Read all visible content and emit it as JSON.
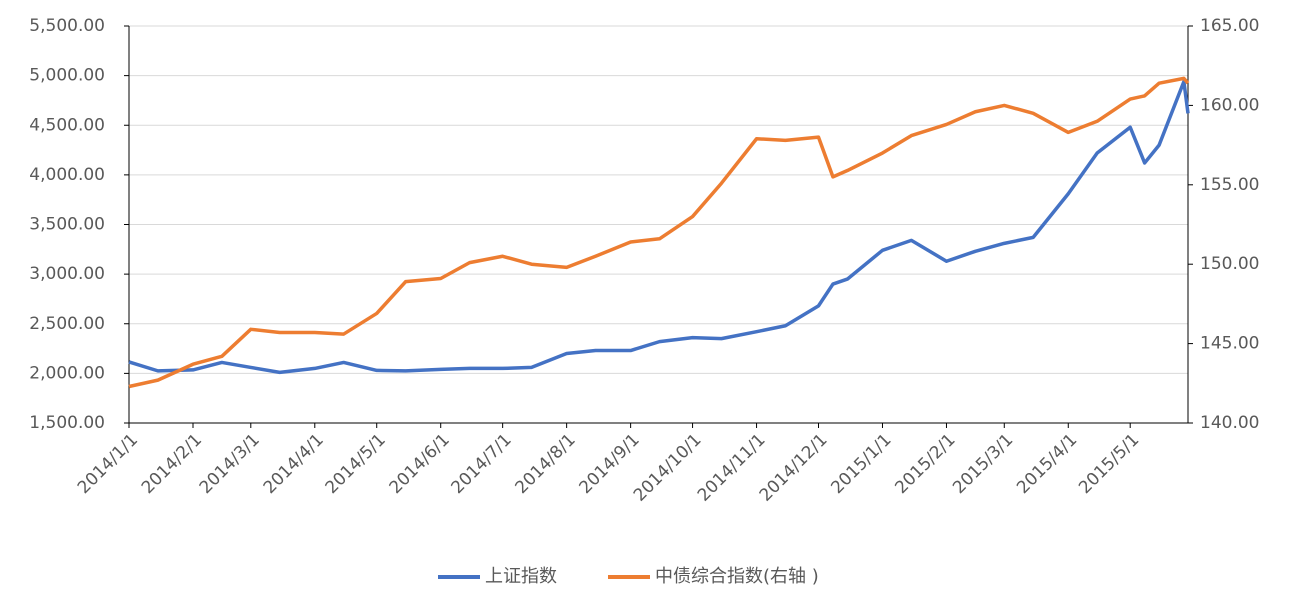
{
  "chart_data": {
    "type": "line",
    "x": [
      "2014/1/1",
      "2014/1/15",
      "2014/2/1",
      "2014/2/15",
      "2014/3/1",
      "2014/3/15",
      "2014/4/1",
      "2014/4/15",
      "2014/5/1",
      "2014/5/15",
      "2014/6/1",
      "2014/6/15",
      "2014/7/1",
      "2014/7/15",
      "2014/8/1",
      "2014/8/15",
      "2014/9/1",
      "2014/9/15",
      "2014/10/1",
      "2014/10/15",
      "2014/11/1",
      "2014/11/15",
      "2014/12/1",
      "2014/12/8",
      "2014/12/15",
      "2015/1/1",
      "2015/1/15",
      "2015/2/1",
      "2015/2/15",
      "2015/3/1",
      "2015/3/15",
      "2015/4/1",
      "2015/4/15",
      "2015/5/1",
      "2015/5/8",
      "2015/5/15",
      "2015/5/27",
      "2015/5/29"
    ],
    "series": [
      {
        "name": "上证指数",
        "color": "#4472c4",
        "axis": "y",
        "values": [
          2115,
          2025,
          2035,
          2110,
          2060,
          2010,
          2050,
          2110,
          2030,
          2025,
          2040,
          2050,
          2050,
          2060,
          2200,
          2230,
          2230,
          2320,
          2360,
          2350,
          2420,
          2480,
          2680,
          2900,
          2950,
          3240,
          3340,
          3130,
          3230,
          3310,
          3370,
          3810,
          4220,
          4480,
          4120,
          4300,
          4940,
          4620
        ]
      },
      {
        "name": "中债综合指数(右轴 )",
        "color": "#ed7d31",
        "axis": "y2",
        "values": [
          142.3,
          142.7,
          143.7,
          144.2,
          145.9,
          145.7,
          145.7,
          145.6,
          146.9,
          148.9,
          149.1,
          150.1,
          150.5,
          150.0,
          149.8,
          150.5,
          151.4,
          151.6,
          153.0,
          155.1,
          157.9,
          157.8,
          158.0,
          155.5,
          155.9,
          157.0,
          158.1,
          158.8,
          159.6,
          160.0,
          159.5,
          158.3,
          159.0,
          160.4,
          160.6,
          161.4,
          161.7,
          161.4
        ]
      }
    ],
    "xlim": [
      "2014/1/1",
      "2015/5/29"
    ],
    "xticks": [
      "2014/1/1",
      "2014/2/1",
      "2014/3/1",
      "2014/4/1",
      "2014/5/1",
      "2014/6/1",
      "2014/7/1",
      "2014/8/1",
      "2014/9/1",
      "2014/10/1",
      "2014/11/1",
      "2014/12/1",
      "2015/1/1",
      "2015/2/1",
      "2015/3/1",
      "2015/4/1",
      "2015/5/1"
    ],
    "ylim": [
      1500,
      5500
    ],
    "yticks": [
      {
        "value": 1500,
        "label": "1,500.00"
      },
      {
        "value": 2000,
        "label": "2,000.00"
      },
      {
        "value": 2500,
        "label": "2,500.00"
      },
      {
        "value": 3000,
        "label": "3,000.00"
      },
      {
        "value": 3500,
        "label": "3,500.00"
      },
      {
        "value": 4000,
        "label": "4,000.00"
      },
      {
        "value": 4500,
        "label": "4,500.00"
      },
      {
        "value": 5000,
        "label": "5,000.00"
      },
      {
        "value": 5500,
        "label": "5,500.00"
      }
    ],
    "y2lim": [
      140,
      165
    ],
    "y2ticks": [
      {
        "value": 140,
        "label": "140.00"
      },
      {
        "value": 145,
        "label": "145.00"
      },
      {
        "value": 150,
        "label": "150.00"
      },
      {
        "value": 155,
        "label": "155.00"
      },
      {
        "value": 160,
        "label": "160.00"
      },
      {
        "value": 165,
        "label": "165.00"
      }
    ],
    "grid": true,
    "legend": "bottom"
  }
}
